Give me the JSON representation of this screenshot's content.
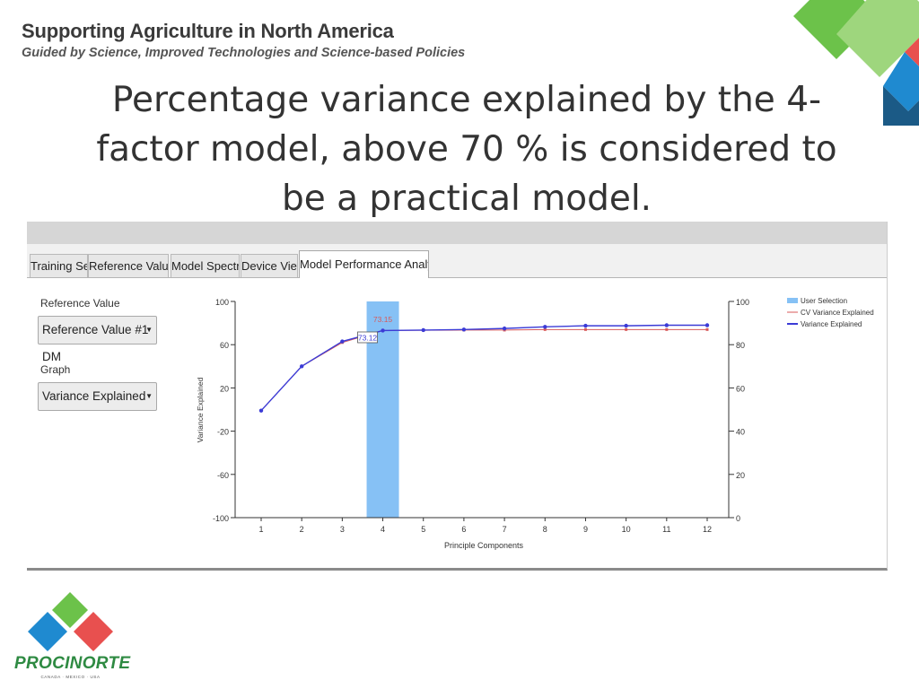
{
  "header": {
    "title": "Supporting Agriculture in North America",
    "subtitle": "Guided by Science, Improved Technologies and Science-based Policies"
  },
  "slide": {
    "title_lines": [
      "Percentage variance explained by the 4-",
      "factor model, above 70 % is considered to",
      "be a practical model."
    ]
  },
  "app": {
    "tabs": [
      {
        "label": "Training Set",
        "active": false
      },
      {
        "label": "Reference Values",
        "active": false
      },
      {
        "label": "Model Spectra",
        "active": false
      },
      {
        "label": "Device View",
        "active": false
      },
      {
        "label": "Model Performance Analysis",
        "active": true
      }
    ],
    "controls": {
      "reference_label": "Reference Value",
      "reference_value": "Reference Value #1 DM",
      "graph_label": "Graph",
      "graph_value": "Variance Explained"
    }
  },
  "colors": {
    "variance": "#3b3bd6",
    "cv_variance": "#d85a5a",
    "selection": "#86c1f5",
    "green": "#6cc24a",
    "red": "#e8504f",
    "blue": "#1f8ad0",
    "navy": "#1b5a86"
  },
  "chart_data": {
    "type": "line",
    "xlabel": "Principle Components",
    "ylabel": "Variance Explained",
    "x": [
      1,
      2,
      3,
      4,
      5,
      6,
      7,
      8,
      9,
      10,
      11,
      12
    ],
    "ylim_left": [
      -100,
      100
    ],
    "left_ticks": [
      100,
      60,
      20,
      -20,
      -60,
      -100
    ],
    "ylim_right": [
      0,
      100
    ],
    "right_ticks": [
      100,
      80,
      60,
      40,
      20,
      0
    ],
    "selection": {
      "component": 4
    },
    "annotations": [
      {
        "text": "73.15",
        "x": 4,
        "series": "CV Variance Explained"
      },
      {
        "text": "73.12",
        "x": 4,
        "series": "Variance Explained"
      }
    ],
    "legend": {
      "position": "top-right",
      "entries": [
        "User Selection",
        "CV Variance Explained",
        "Variance Explained"
      ]
    },
    "series": [
      {
        "name": "Variance Explained",
        "values": [
          -1,
          40,
          63,
          73.12,
          73.5,
          74,
          75,
          76.5,
          77.5,
          77.5,
          78,
          78
        ]
      },
      {
        "name": "CV Variance Explained",
        "values": [
          -1,
          40,
          62,
          73.15,
          73.3,
          73.5,
          73.5,
          74,
          74,
          74,
          74,
          74
        ]
      }
    ]
  }
}
